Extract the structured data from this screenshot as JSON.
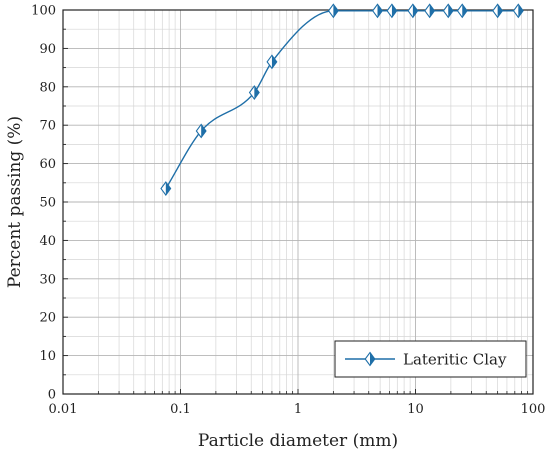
{
  "chart_data": {
    "type": "line",
    "title": "",
    "xlabel": "Particle diameter (mm)",
    "ylabel": "Percent passing (%)",
    "x_scale": "log",
    "xlim": [
      0.01,
      100
    ],
    "ylim": [
      0,
      100
    ],
    "x_ticks": [
      0.01,
      0.1,
      1,
      10,
      100
    ],
    "x_tick_labels": [
      "0.01",
      "0.1",
      "1",
      "10",
      "100"
    ],
    "y_ticks": [
      0,
      10,
      20,
      30,
      40,
      50,
      60,
      70,
      80,
      90,
      100
    ],
    "y_tick_labels": [
      "0",
      "10",
      "20",
      "30",
      "40",
      "50",
      "60",
      "70",
      "80",
      "90",
      "100"
    ],
    "grid": true,
    "legend_position": "bottom-right",
    "series": [
      {
        "name": "Lateritic Clay",
        "color": "#1f6fa8",
        "marker": "half-filled-diamond",
        "x": [
          0.075,
          0.15,
          0.425,
          0.6,
          2,
          4.75,
          6.3,
          9.5,
          13.2,
          19,
          25,
          50,
          75
        ],
        "y": [
          53.5,
          68.5,
          78.5,
          86.5,
          99.8,
          99.8,
          99.8,
          99.8,
          99.8,
          99.8,
          99.8,
          99.8,
          99.8
        ]
      }
    ]
  }
}
